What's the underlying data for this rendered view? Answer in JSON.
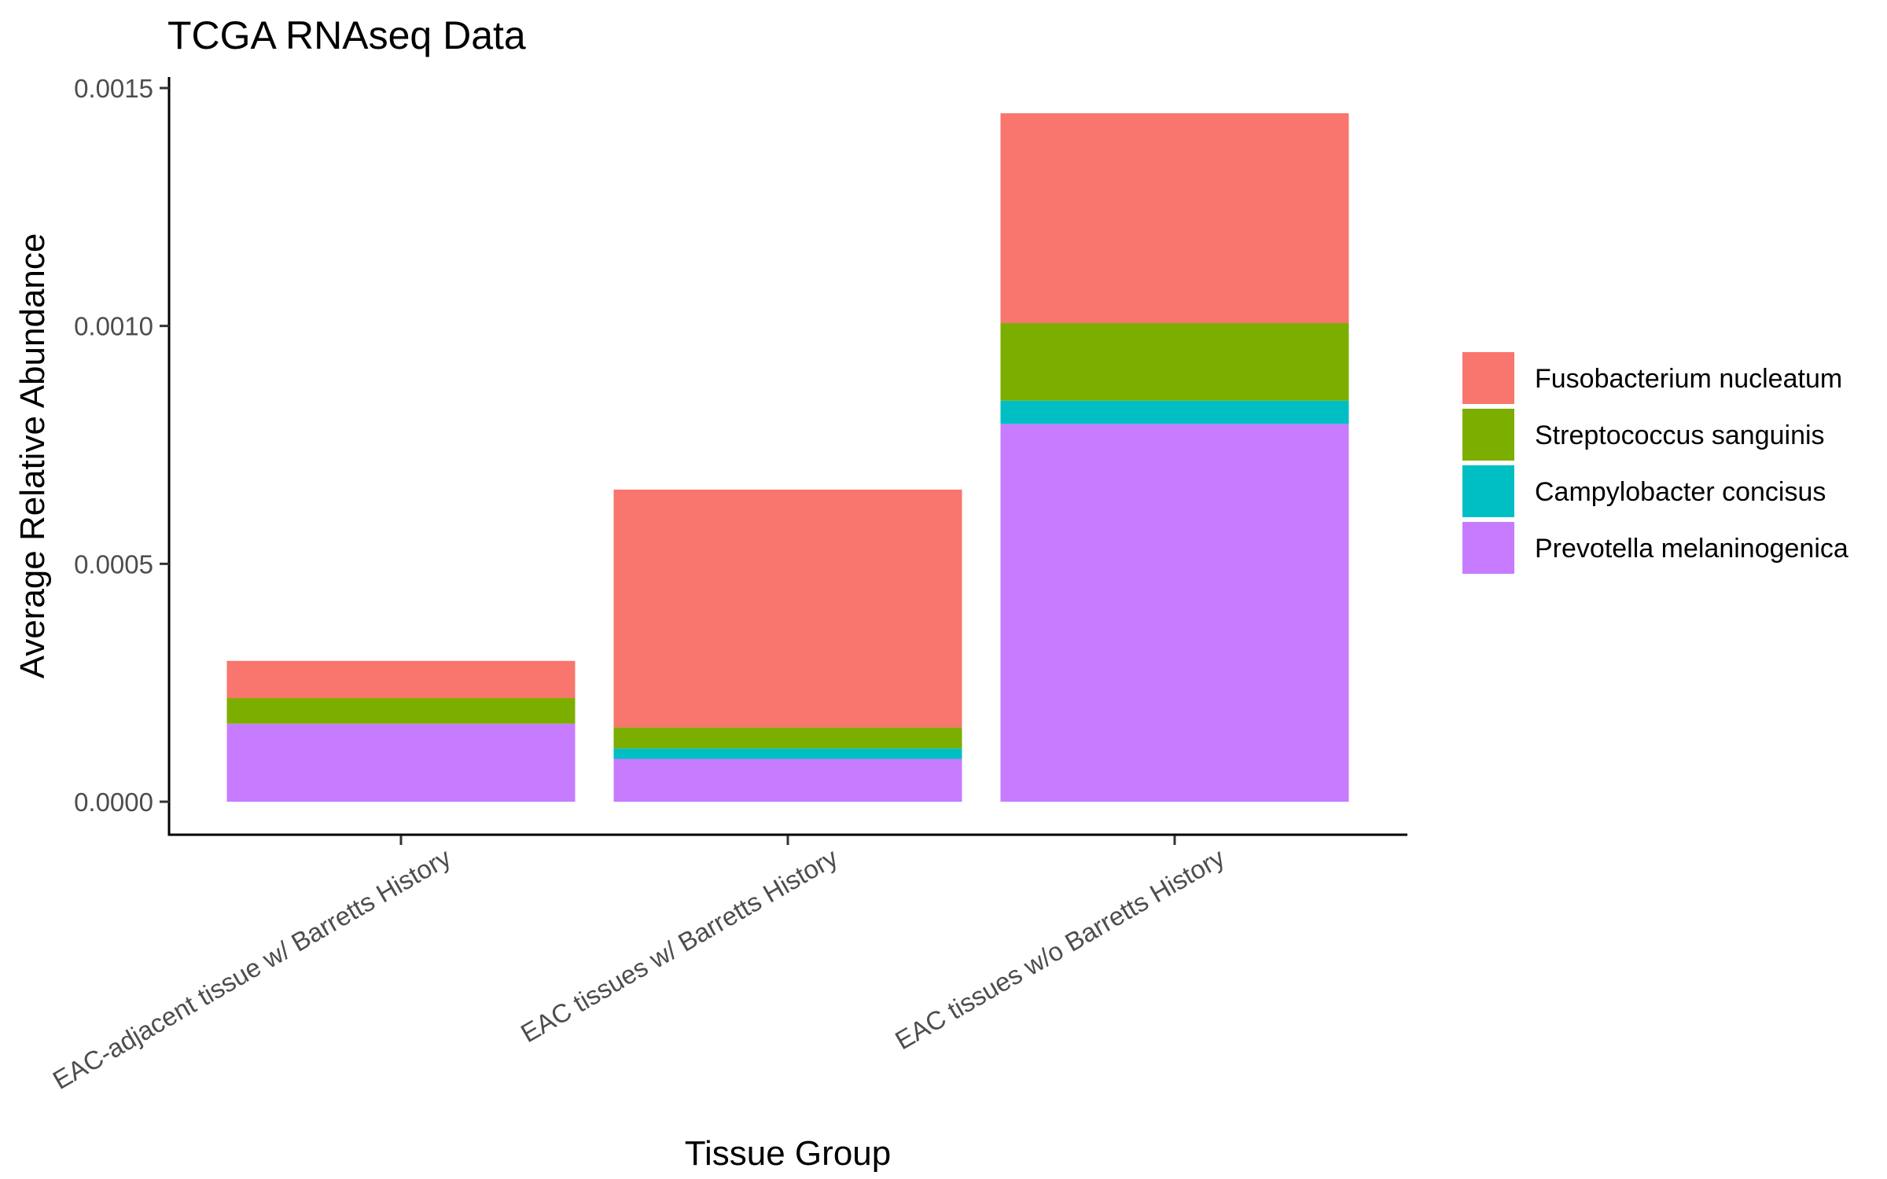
{
  "chart_data": {
    "type": "bar",
    "stacked": true,
    "title": "TCGA RNAseq Data",
    "xlabel": "Tissue Group",
    "ylabel": "Average Relative Abundance",
    "ylim": [
      0,
      0.0015
    ],
    "yticks": [
      0,
      0.0005,
      0.001,
      0.0015
    ],
    "ytick_labels": [
      "0.0000",
      "0.0005",
      "0.0010",
      "0.0015"
    ],
    "categories": [
      "EAC-adjacent tissue w/ Barretts History",
      "EAC tissues w/ Barretts History",
      "EAC tissues w/o Barretts History"
    ],
    "series": [
      {
        "name": "Prevotella melaninogenica",
        "color": "#C77CFF",
        "values": [
          0.000164,
          9e-05,
          0.000794
        ]
      },
      {
        "name": "Campylobacter concisus",
        "color": "#00BFC4",
        "values": [
          0.0,
          2.2e-05,
          4.9e-05
        ]
      },
      {
        "name": "Streptococcus sanguinis",
        "color": "#7CAE00",
        "values": [
          5.4e-05,
          4.4e-05,
          0.000163
        ]
      },
      {
        "name": "Fusobacterium nucleatum",
        "color": "#F8766D",
        "values": [
          7.8e-05,
          0.0005,
          0.000441
        ]
      }
    ],
    "legend": {
      "position": "right",
      "order": [
        "Fusobacterium nucleatum",
        "Streptococcus sanguinis",
        "Campylobacter concisus",
        "Prevotella melaninogenica"
      ]
    },
    "grid": false
  }
}
